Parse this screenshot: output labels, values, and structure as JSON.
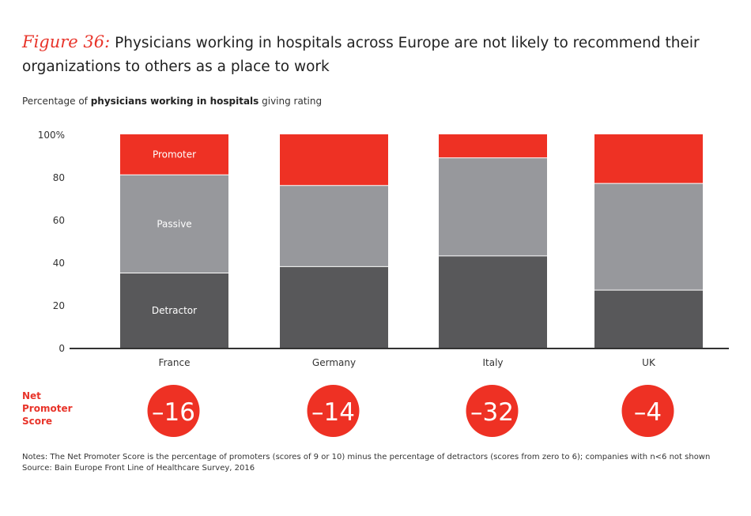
{
  "title": {
    "figure": "Figure 36:",
    "text": "Physicians working in hospitals across Europe are not likely to recommend their organizations to others as a place to work"
  },
  "subtitle": {
    "pre": "Percentage of ",
    "bold": "physicians working in hospitals",
    "post": " giving rating"
  },
  "chart_data": {
    "type": "bar",
    "stacked": true,
    "categories": [
      "France",
      "Germany",
      "Italy",
      "UK"
    ],
    "series": [
      {
        "name": "Detractor",
        "values": [
          35,
          38,
          43,
          27
        ],
        "color": "#58585a"
      },
      {
        "name": "Passive",
        "values": [
          46,
          38,
          46,
          50
        ],
        "color": "#97989c"
      },
      {
        "name": "Promoter",
        "values": [
          19,
          24,
          11,
          23
        ],
        "color": "#ee3124"
      }
    ],
    "yticks": [
      "0",
      "20",
      "40",
      "60",
      "80",
      "100%"
    ],
    "ylim": [
      0,
      100
    ],
    "grid": false,
    "legend": "inline labels on first bar"
  },
  "nps": {
    "label_lines": [
      "Net",
      "Promoter",
      "Score"
    ],
    "values": [
      "–16",
      "–14",
      "–32",
      "–4"
    ],
    "color": "#ee3124"
  },
  "notes": [
    "Notes: The Net Promoter Score is the percentage of promoters (scores of 9 or 10) minus the percentage of detractors (scores from zero to 6); companies with n<6 not shown",
    "Source: Bain Europe Front Line of Healthcare Survey, 2016"
  ]
}
